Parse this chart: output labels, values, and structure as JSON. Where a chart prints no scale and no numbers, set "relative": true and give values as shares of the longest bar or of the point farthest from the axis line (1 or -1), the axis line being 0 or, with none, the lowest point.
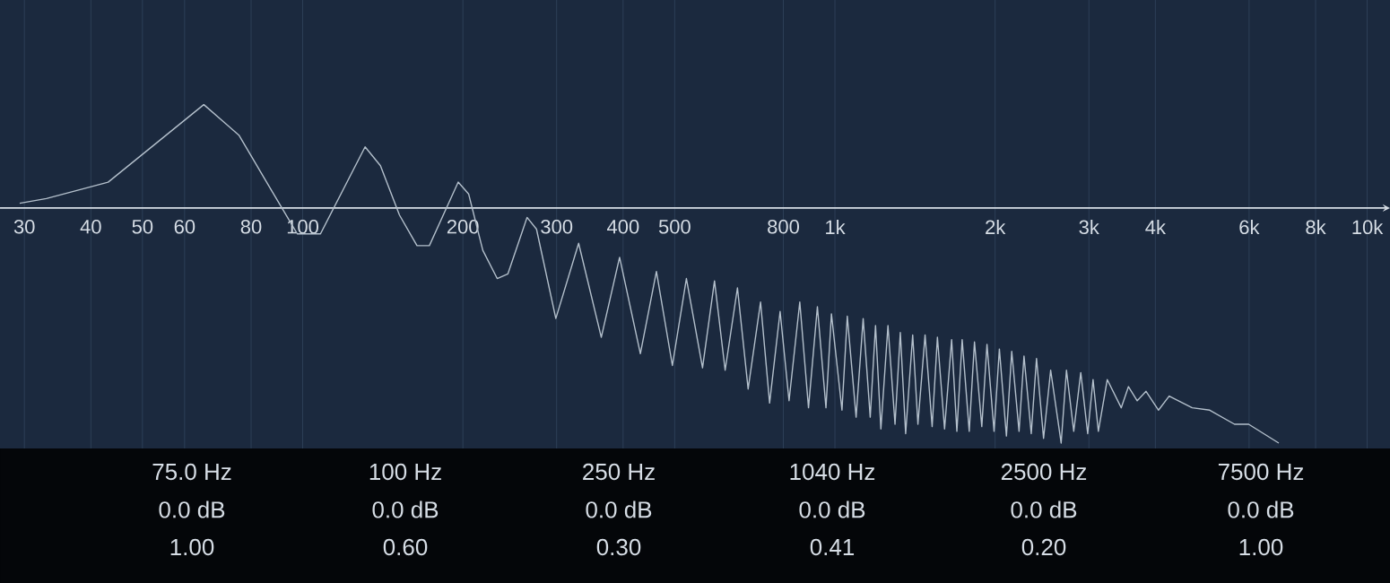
{
  "chart_data": {
    "type": "line",
    "relative": true,
    "log": "x",
    "grid": "x",
    "color": "#b4c0cc",
    "xlim": [
      27,
      11040
    ],
    "xticks": [
      30,
      40,
      50,
      60,
      80,
      100,
      200,
      300,
      400,
      500,
      800,
      {
        "value": 1000,
        "label": "1k"
      },
      {
        "value": 2000,
        "label": "2k"
      },
      {
        "value": 3000,
        "label": "3k"
      },
      {
        "value": 4000,
        "label": "4k"
      },
      {
        "value": 6000,
        "label": "6k"
      },
      {
        "value": 8000,
        "label": "8k"
      },
      {
        "value": 10000,
        "label": "10k"
      }
    ],
    "x": [
      29.4,
      33.0,
      43.1,
      65.2,
      75.9,
      87.1,
      97.7,
      108,
      131,
      140,
      152,
      164,
      173,
      196,
      205,
      218,
      232,
      243,
      264,
      275,
      299,
      330,
      364,
      394,
      431,
      462,
      495,
      526,
      564,
      594,
      622,
      656,
      687,
      725,
      754,
      789,
      820,
      859,
      892,
      927,
      962,
      985,
      1031,
      1055,
      1096,
      1130,
      1165,
      1192,
      1220,
      1258,
      1297,
      1327,
      1358,
      1400,
      1432,
      1477,
      1523,
      1558,
      1607,
      1657,
      1695,
      1734,
      1788,
      1829,
      1888,
      1931,
      1991,
      2037,
      2100,
      2149,
      2218,
      2266,
      2338,
      2392,
      2466,
      2543,
      2661,
      2723,
      2810,
      2897,
      2985,
      3055,
      3126,
      3249,
      3451,
      3561,
      3698,
      3843,
      4055,
      4246,
      4690,
      5061,
      5634,
      5989,
      6823
    ],
    "values": [
      0.02,
      0.04,
      0.11,
      0.44,
      0.31,
      0.08,
      -0.11,
      -0.11,
      0.26,
      0.18,
      -0.03,
      -0.16,
      -0.16,
      0.11,
      0.06,
      -0.18,
      -0.3,
      -0.28,
      -0.04,
      -0.09,
      -0.47,
      -0.15,
      -0.55,
      -0.21,
      -0.62,
      -0.27,
      -0.67,
      -0.3,
      -0.68,
      -0.31,
      -0.69,
      -0.34,
      -0.77,
      -0.4,
      -0.83,
      -0.44,
      -0.82,
      -0.4,
      -0.85,
      -0.42,
      -0.85,
      -0.45,
      -0.86,
      -0.46,
      -0.89,
      -0.47,
      -0.89,
      -0.5,
      -0.94,
      -0.5,
      -0.92,
      -0.53,
      -0.96,
      -0.54,
      -0.92,
      -0.54,
      -0.93,
      -0.55,
      -0.94,
      -0.56,
      -0.95,
      -0.56,
      -0.95,
      -0.57,
      -0.93,
      -0.58,
      -0.95,
      -0.6,
      -0.97,
      -0.61,
      -0.95,
      -0.63,
      -0.96,
      -0.64,
      -0.98,
      -0.69,
      -1.0,
      -0.69,
      -0.95,
      -0.7,
      -0.96,
      -0.73,
      -0.95,
      -0.73,
      -0.85,
      -0.76,
      -0.82,
      -0.78,
      -0.86,
      -0.8,
      -0.85,
      -0.86,
      -0.92,
      -0.92,
      -1.0
    ],
    "annotations": [
      "75.0 Hz",
      "0.0 dB",
      "1.00",
      "100 Hz",
      "0.0 dB",
      "0.60",
      "250 Hz",
      "0.0 dB",
      "0.30",
      "1040 Hz",
      "0.0 dB",
      "0.41",
      "2500 Hz",
      "0.0 dB",
      "0.20",
      "7500 Hz",
      "0.0 dB",
      "1.00"
    ]
  }
}
